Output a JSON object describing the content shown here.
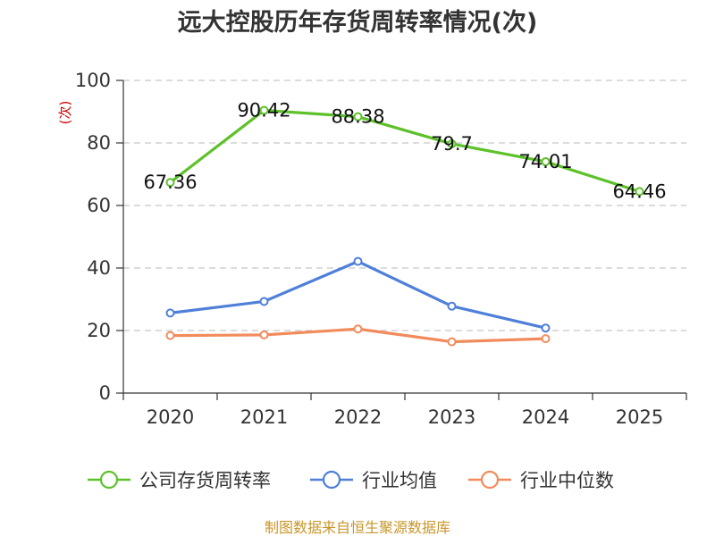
{
  "chart_data": {
    "type": "line",
    "title": "远大控股历年存货周转率情况(次)",
    "ylabel": "(次)",
    "xlabel": "",
    "categories": [
      "2020",
      "2021",
      "2022",
      "2023",
      "2024",
      "2025"
    ],
    "ylim": [
      0,
      100
    ],
    "yticks": [
      0,
      20,
      40,
      60,
      80,
      100
    ],
    "grid": true,
    "legend_position": "bottom",
    "series": [
      {
        "name": "公司存货周转率",
        "color": "#5dc12a",
        "values": [
          67.36,
          90.42,
          88.38,
          79.7,
          74.01,
          64.46
        ],
        "data_labels": [
          "67.36",
          "90.42",
          "88.38",
          "79.7",
          "74.01",
          "64.46"
        ]
      },
      {
        "name": "行业均值",
        "color": "#4e7fd9",
        "values": [
          25.6,
          29.3,
          42.1,
          27.8,
          20.8,
          null
        ]
      },
      {
        "name": "行业中位数",
        "color": "#f28b5b",
        "values": [
          18.4,
          18.6,
          20.5,
          16.4,
          17.4,
          null
        ]
      }
    ]
  },
  "source": "制图数据来自恒生聚源数据库"
}
